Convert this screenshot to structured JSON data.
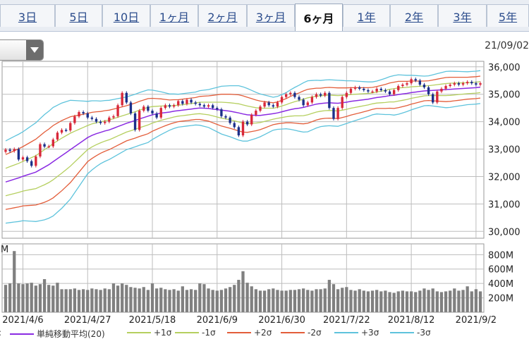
{
  "tabs": [
    {
      "label": "3日",
      "active": false
    },
    {
      "label": "5日",
      "active": false
    },
    {
      "label": "10日",
      "active": false
    },
    {
      "label": "1ヶ月",
      "active": false
    },
    {
      "label": "2ヶ月",
      "active": false
    },
    {
      "label": "3ヶ月",
      "active": false
    },
    {
      "label": "6ヶ月",
      "active": true
    },
    {
      "label": "1年",
      "active": false
    },
    {
      "label": "2年",
      "active": false
    },
    {
      "label": "3年",
      "active": false
    },
    {
      "label": "5年",
      "active": false
    }
  ],
  "date_label": "21/09/02",
  "legend_prefix": ":",
  "legend": [
    {
      "label": "単純移動平均(20)",
      "color": "#8a2be2"
    },
    {
      "label": "+1σ",
      "color": "#b5cf5f"
    },
    {
      "label": "-1σ",
      "color": "#b5cf5f"
    },
    {
      "label": "+2σ",
      "color": "#e35d3a"
    },
    {
      "label": "-2σ",
      "color": "#e35d3a"
    },
    {
      "label": "+3σ",
      "color": "#5ec3dc"
    },
    {
      "label": "-3σ",
      "color": "#5ec3dc"
    }
  ],
  "colors": {
    "up": "#d8283a",
    "down": "#1c2f8a",
    "volume": "#808080",
    "grid": "#bdbdbd"
  },
  "chart_data": [
    {
      "type": "candlestick",
      "title": "",
      "ylim": [
        29750,
        36200
      ],
      "yticks": [
        30000,
        31000,
        32000,
        33000,
        34000,
        35000,
        36000
      ],
      "ytick_labels": [
        "30,000",
        "31,000",
        "32,000",
        "33,000",
        "34,000",
        "35,000",
        "36,000"
      ],
      "x_labels": [
        "2021/4/6",
        "2021/4/27",
        "2021/5/18",
        "2021/6/9",
        "2021/6/30",
        "2021/7/22",
        "2021/8/12",
        "2021/9/2"
      ],
      "x_label_index": [
        4,
        19,
        34,
        49,
        64,
        79,
        94,
        109
      ],
      "close": [
        32980,
        32930,
        33000,
        32620,
        32700,
        32560,
        32390,
        32730,
        33180,
        33090,
        33100,
        33350,
        33600,
        33700,
        33680,
        33950,
        34190,
        34350,
        34300,
        34150,
        34100,
        34000,
        33950,
        34000,
        34150,
        34200,
        34600,
        35050,
        34700,
        34300,
        33700,
        34400,
        34550,
        34400,
        34300,
        34150,
        34500,
        34600,
        34550,
        34600,
        34750,
        34650,
        34800,
        34700,
        34650,
        34600,
        34550,
        34600,
        34500,
        34450,
        34200,
        34150,
        33950,
        33800,
        33500,
        34000,
        33900,
        34250,
        34400,
        34550,
        34700,
        34600,
        34550,
        34700,
        34900,
        35000,
        35050,
        34900,
        34800,
        34600,
        34700,
        34900,
        35000,
        34950,
        35050,
        34500,
        34100,
        34500,
        34900,
        35050,
        35200,
        35250,
        35200,
        35150,
        35100,
        35100,
        35200,
        35150,
        35100,
        35000,
        35150,
        35300,
        35350,
        35400,
        35550,
        35500,
        35350,
        35250,
        35000,
        34700,
        35100,
        35200,
        35300,
        35350,
        35400,
        35350,
        35400,
        35450,
        35400,
        35350,
        35400
      ],
      "sma20": [
        31800,
        31850,
        31900,
        31950,
        32010,
        32060,
        32110,
        32160,
        32250,
        32340,
        32430,
        32540,
        32650,
        32760,
        32870,
        32980,
        33090,
        33200,
        33310,
        33420,
        33500,
        33560,
        33610,
        33660,
        33700,
        33760,
        33820,
        33880,
        33940,
        33990,
        34040,
        34100,
        34150,
        34200,
        34250,
        34280,
        34310,
        34330,
        34350,
        34380,
        34400,
        34420,
        34440,
        34460,
        34480,
        34500,
        34490,
        34480,
        34460,
        34440,
        34420,
        34400,
        34380,
        34350,
        34320,
        34280,
        34250,
        34240,
        34230,
        34230,
        34250,
        34270,
        34290,
        34320,
        34360,
        34400,
        34440,
        34470,
        34490,
        34520,
        34560,
        34600,
        34640,
        34660,
        34680,
        34690,
        34680,
        34670,
        34690,
        34710,
        34740,
        34760,
        34780,
        34800,
        34820,
        34850,
        34880,
        34900,
        34920,
        34950,
        34960,
        34990,
        35010,
        35030,
        35060,
        35080,
        35100,
        35120,
        35130,
        35140,
        35150,
        35160,
        35170,
        35180,
        35190,
        35200,
        35210,
        35220,
        35230,
        35240,
        35260
      ],
      "sigma": [
        500,
        510,
        520,
        530,
        540,
        560,
        580,
        600,
        620,
        640,
        650,
        660,
        650,
        640,
        620,
        600,
        560,
        520,
        480,
        440,
        420,
        400,
        380,
        370,
        360,
        350,
        340,
        330,
        320,
        320,
        320,
        320,
        320,
        320,
        300,
        280,
        260,
        240,
        220,
        210,
        200,
        200,
        200,
        200,
        200,
        210,
        220,
        230,
        250,
        270,
        290,
        300,
        310,
        320,
        330,
        330,
        320,
        300,
        280,
        260,
        240,
        220,
        200,
        200,
        210,
        220,
        240,
        260,
        280,
        300,
        310,
        300,
        290,
        280,
        280,
        280,
        280,
        280,
        270,
        260,
        250,
        240,
        230,
        220,
        210,
        200,
        200,
        210,
        220,
        230,
        240,
        240,
        230,
        220,
        210,
        200,
        190,
        180,
        180,
        190,
        200,
        210,
        220,
        220,
        215,
        210,
        205,
        200,
        200,
        200,
        200
      ]
    },
    {
      "type": "bar",
      "title": "",
      "ylabel": "M",
      "ylim": [
        0,
        950
      ],
      "yticks": [
        200,
        400,
        600,
        800
      ],
      "ytick_labels": [
        "200M",
        "400M",
        "600M",
        "800M"
      ],
      "values": [
        380,
        400,
        850,
        400,
        390,
        400,
        410,
        370,
        390,
        460,
        380,
        370,
        410,
        320,
        320,
        320,
        330,
        310,
        320,
        310,
        330,
        320,
        310,
        330,
        320,
        400,
        370,
        400,
        380,
        350,
        340,
        330,
        350,
        310,
        400,
        330,
        340,
        320,
        310,
        320,
        300,
        360,
        310,
        320,
        310,
        400,
        390,
        330,
        310,
        300,
        310,
        330,
        350,
        380,
        450,
        570,
        410,
        360,
        320,
        300,
        300,
        320,
        330,
        310,
        300,
        300,
        310,
        310,
        320,
        330,
        310,
        300,
        320,
        320,
        330,
        450,
        390,
        320,
        340,
        350,
        310,
        300,
        320,
        300,
        290,
        300,
        310,
        290,
        300,
        280,
        270,
        290,
        300,
        290,
        290,
        280,
        300,
        330,
        310,
        330,
        290,
        280,
        290,
        300,
        330,
        300,
        310,
        360,
        290,
        320,
        290
      ]
    }
  ]
}
